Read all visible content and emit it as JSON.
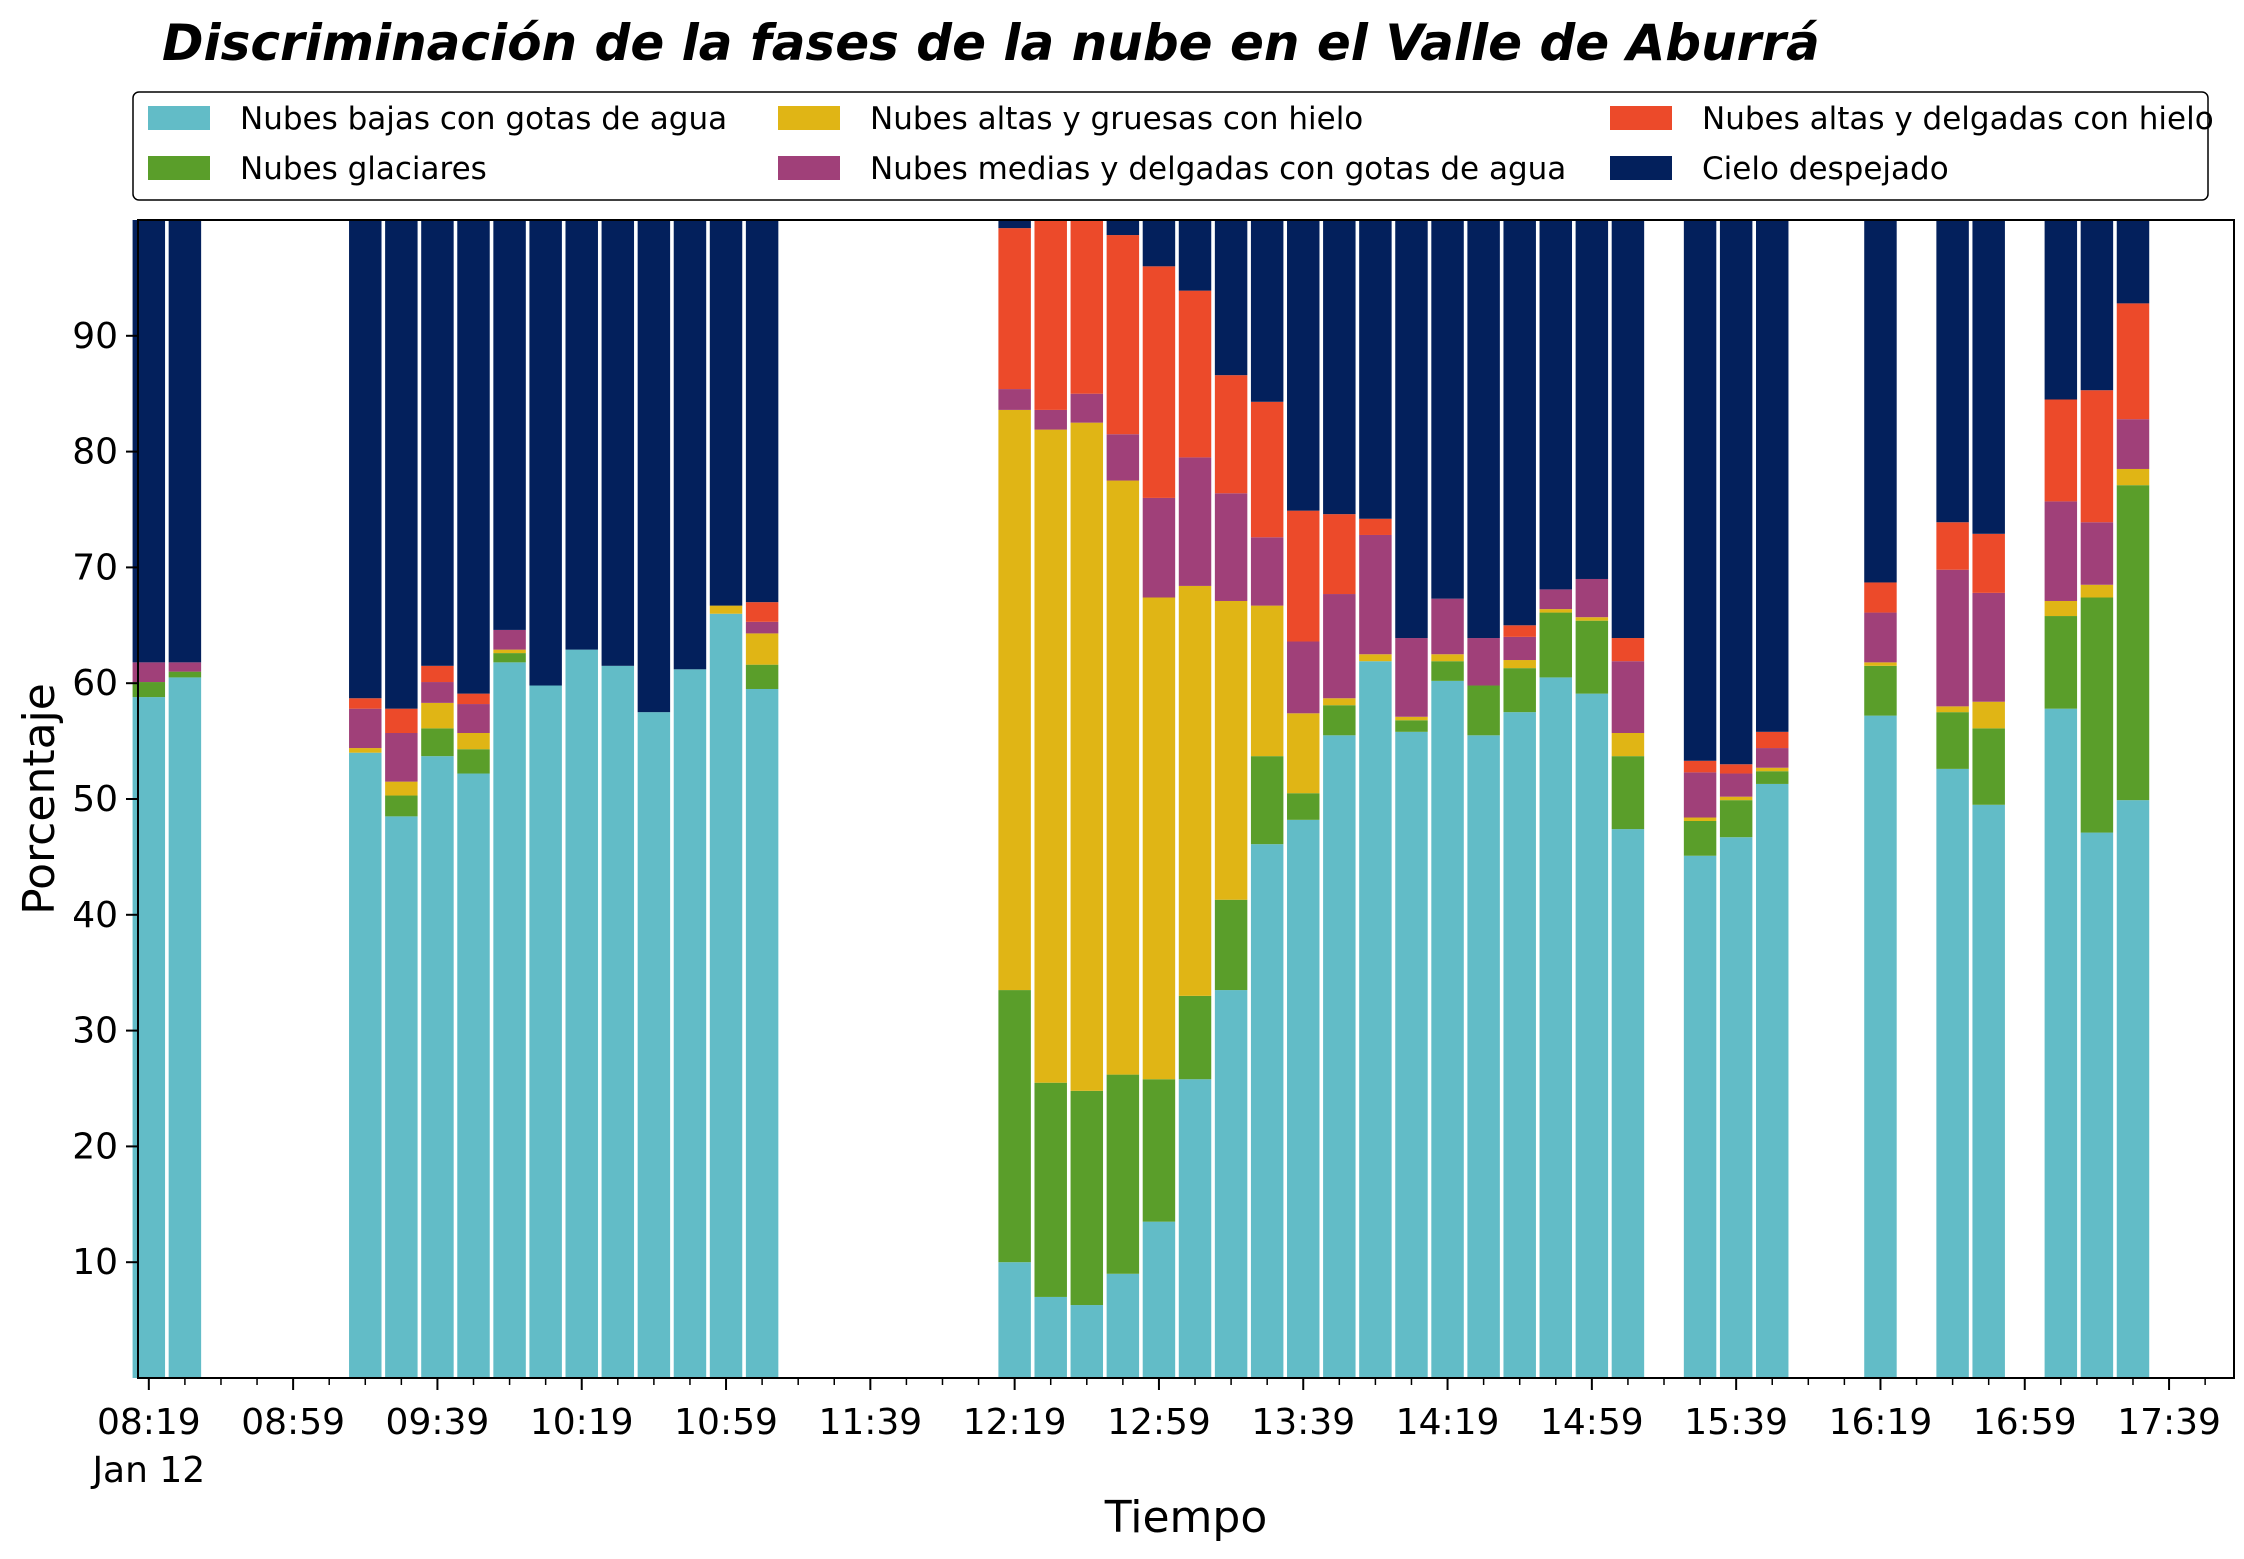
{
  "chart_data": {
    "type": "bar",
    "stacked": true,
    "title": "Discriminación de la fases de la nube en el Valle de Aburrá",
    "xlabel": "Tiempo",
    "ylabel": "Porcentaje",
    "ylim": [
      0,
      100
    ],
    "yticks": [
      10,
      20,
      30,
      40,
      50,
      60,
      70,
      80,
      90
    ],
    "xlim": [
      496,
      1077
    ],
    "x_unit": "minutes of day (time of day, Jan 12)",
    "xticks": [
      {
        "x": 499,
        "label": "08:19",
        "sublabel": "Jan 12"
      },
      {
        "x": 539,
        "label": "08:59"
      },
      {
        "x": 579,
        "label": "09:39"
      },
      {
        "x": 619,
        "label": "10:19"
      },
      {
        "x": 659,
        "label": "10:59"
      },
      {
        "x": 699,
        "label": "11:39"
      },
      {
        "x": 739,
        "label": "12:19"
      },
      {
        "x": 779,
        "label": "12:59"
      },
      {
        "x": 819,
        "label": "13:39"
      },
      {
        "x": 859,
        "label": "14:19"
      },
      {
        "x": 899,
        "label": "14:59"
      },
      {
        "x": 939,
        "label": "15:39"
      },
      {
        "x": 979,
        "label": "16:19"
      },
      {
        "x": 1019,
        "label": "16:59"
      },
      {
        "x": 1059,
        "label": "17:39"
      }
    ],
    "minor_xticks": [
      509,
      519,
      529,
      549,
      559,
      569,
      589,
      599,
      609,
      629,
      639,
      649,
      669,
      679,
      689,
      709,
      719,
      729,
      749,
      759,
      769,
      789,
      799,
      809,
      829,
      839,
      849,
      869,
      879,
      889,
      909,
      919,
      929,
      949,
      959,
      969,
      989,
      999,
      1009,
      1029,
      1039,
      1049,
      1069
    ],
    "legend_position": "top (above plot, 3 columns)",
    "series": [
      {
        "name": "Nubes bajas con gotas de agua",
        "color": "#62bcc7"
      },
      {
        "name": "Nubes glaciares",
        "color": "#5a9e2a"
      },
      {
        "name": "Nubes altas y gruesas con hielo",
        "color": "#e0b515"
      },
      {
        "name": "Nubes medias y delgadas con gotas de agua",
        "color": "#a04079"
      },
      {
        "name": "Nubes altas y delgadas con hielo",
        "color": "#ec4a2a"
      },
      {
        "name": "Cielo despejado",
        "color": "#03205c"
      }
    ],
    "bar_width": 9,
    "bars": [
      {
        "time": "08:19",
        "x": 499,
        "values": [
          58.8,
          1.3,
          0,
          1.7,
          0,
          38.2
        ]
      },
      {
        "time": "08:29",
        "x": 509,
        "values": [
          60.5,
          0.5,
          0,
          0.8,
          0,
          38.2
        ]
      },
      {
        "time": "09:19",
        "x": 559,
        "values": [
          54,
          0,
          0.4,
          3.4,
          0.9,
          41.3
        ]
      },
      {
        "time": "09:29",
        "x": 569,
        "values": [
          48.5,
          1.8,
          1.2,
          4.2,
          2.1,
          42.2
        ]
      },
      {
        "time": "09:39",
        "x": 579,
        "values": [
          53.7,
          2.4,
          2.2,
          1.8,
          1.4,
          38.5
        ]
      },
      {
        "time": "09:49",
        "x": 589,
        "values": [
          52.2,
          2.1,
          1.4,
          2.5,
          0.9,
          40.9
        ]
      },
      {
        "time": "09:59",
        "x": 599,
        "values": [
          61.8,
          0.8,
          0.3,
          1.7,
          0,
          35.4
        ]
      },
      {
        "time": "10:09",
        "x": 609,
        "values": [
          59.8,
          0,
          0,
          0,
          0,
          40.2
        ]
      },
      {
        "time": "10:19",
        "x": 619,
        "values": [
          62.9,
          0,
          0,
          0,
          0,
          37.1
        ]
      },
      {
        "time": "10:29",
        "x": 629,
        "values": [
          61.5,
          0,
          0,
          0,
          0,
          38.5
        ]
      },
      {
        "time": "10:39",
        "x": 639,
        "values": [
          57.5,
          0,
          0,
          0,
          0,
          42.5
        ]
      },
      {
        "time": "10:49",
        "x": 649,
        "values": [
          61.2,
          0,
          0,
          0,
          0,
          38.8
        ]
      },
      {
        "time": "10:59",
        "x": 659,
        "values": [
          66,
          0,
          0.7,
          0,
          0,
          33.3
        ]
      },
      {
        "time": "11:09",
        "x": 669,
        "values": [
          59.5,
          2.1,
          2.7,
          1,
          1.7,
          33
        ]
      },
      {
        "time": "12:19",
        "x": 739,
        "values": [
          10,
          23.5,
          50.1,
          1.8,
          13.9,
          0.7
        ]
      },
      {
        "time": "12:29",
        "x": 749,
        "values": [
          7,
          18.5,
          56.4,
          1.7,
          16.4,
          0
        ]
      },
      {
        "time": "12:39",
        "x": 759,
        "values": [
          6.3,
          18.5,
          57.7,
          2.5,
          15.0,
          0
        ]
      },
      {
        "time": "12:49",
        "x": 769,
        "values": [
          9,
          17.2,
          51.3,
          4,
          17.2,
          1.3
        ]
      },
      {
        "time": "12:59",
        "x": 779,
        "values": [
          13.5,
          12.3,
          41.6,
          8.6,
          20,
          4
        ]
      },
      {
        "time": "13:09",
        "x": 789,
        "values": [
          25.8,
          7.2,
          35.4,
          11.1,
          14.4,
          6.1
        ]
      },
      {
        "time": "13:19",
        "x": 799,
        "values": [
          33.5,
          7.8,
          25.8,
          9.3,
          10.2,
          13.4
        ]
      },
      {
        "time": "13:29",
        "x": 809,
        "values": [
          46.1,
          7.6,
          13,
          5.9,
          11.7,
          15.7
        ]
      },
      {
        "time": "13:39",
        "x": 819,
        "values": [
          48.2,
          2.3,
          6.9,
          6.2,
          11.3,
          25.1
        ]
      },
      {
        "time": "13:49",
        "x": 829,
        "values": [
          55.5,
          2.6,
          0.6,
          9,
          6.9,
          25.4
        ]
      },
      {
        "time": "13:59",
        "x": 839,
        "values": [
          61.9,
          0,
          0.6,
          10.3,
          1.4,
          25.8
        ]
      },
      {
        "time": "14:09",
        "x": 849,
        "values": [
          55.8,
          1,
          0.3,
          6.8,
          0,
          36.1
        ]
      },
      {
        "time": "14:19",
        "x": 859,
        "values": [
          60.2,
          1.7,
          0.6,
          4.8,
          0,
          32.7
        ]
      },
      {
        "time": "14:29",
        "x": 869,
        "values": [
          55.5,
          4.3,
          0,
          4.1,
          0,
          36.1
        ]
      },
      {
        "time": "14:39",
        "x": 879,
        "values": [
          57.5,
          3.8,
          0.7,
          2.0,
          1,
          35
        ]
      },
      {
        "time": "14:49",
        "x": 889,
        "values": [
          60.5,
          5.6,
          0.3,
          1.7,
          0,
          31.9
        ]
      },
      {
        "time": "14:59",
        "x": 899,
        "values": [
          59.1,
          6.3,
          0.3,
          3.3,
          0,
          31
        ]
      },
      {
        "time": "15:09",
        "x": 909,
        "values": [
          47.4,
          6.3,
          2,
          6.2,
          2,
          36.1
        ]
      },
      {
        "time": "15:29",
        "x": 929,
        "values": [
          45.1,
          3,
          0.3,
          3.9,
          1,
          46.7
        ]
      },
      {
        "time": "15:39",
        "x": 939,
        "values": [
          46.7,
          3.2,
          0.3,
          2.0,
          0.8,
          47
        ]
      },
      {
        "time": "15:49",
        "x": 949,
        "values": [
          51.3,
          1.1,
          0.3,
          1.7,
          1.4,
          44.2
        ]
      },
      {
        "time": "16:19",
        "x": 979,
        "values": [
          57.2,
          4.3,
          0.3,
          4.3,
          2.6,
          31.3
        ]
      },
      {
        "time": "16:39",
        "x": 999,
        "values": [
          52.6,
          4.9,
          0.5,
          11.8,
          4.1,
          26.1
        ]
      },
      {
        "time": "16:49",
        "x": 1009,
        "values": [
          49.5,
          6.6,
          2.3,
          9.4,
          5.1,
          27.1
        ]
      },
      {
        "time": "17:09",
        "x": 1029,
        "values": [
          57.8,
          8,
          1.3,
          8.6,
          8.8,
          15.5
        ]
      },
      {
        "time": "17:19",
        "x": 1039,
        "values": [
          47.1,
          20.3,
          1.1,
          5.4,
          11.4,
          14.7
        ]
      },
      {
        "time": "17:29",
        "x": 1049,
        "values": [
          49.9,
          27.2,
          1.4,
          4.3,
          10,
          7.2
        ]
      }
    ]
  }
}
